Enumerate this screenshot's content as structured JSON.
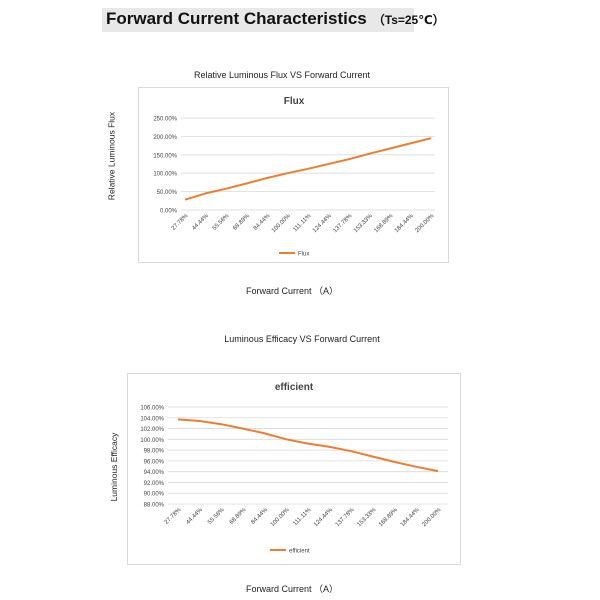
{
  "header": {
    "title": "Forward Current Characteristics",
    "condition": "（Ts=25℃）"
  },
  "colors": {
    "series": "#ED7D31",
    "grid": "#d9d9d9",
    "header_bg": "#e8e8e8"
  },
  "chart_data": [
    {
      "type": "line",
      "caption": "Relative Luminous Flux VS Forward Current",
      "title": "Flux",
      "ylabel": "Relative Luminous Flux",
      "xlabel": "Forward Current （A）",
      "categories": [
        "27.78%",
        "44.44%",
        "55.56%",
        "68.89%",
        "84.44%",
        "100.00%",
        "111.11%",
        "124.44%",
        "137.78%",
        "153.33%",
        "168.89%",
        "184.44%",
        "200.00%"
      ],
      "yticks": [
        "0.00%",
        "50.00%",
        "100.00%",
        "150.00%",
        "200.00%",
        "250.00%"
      ],
      "ylim": [
        0,
        250
      ],
      "series": [
        {
          "name": "Flux",
          "values": [
            28,
            45,
            58,
            72,
            87,
            100,
            112,
            125,
            138,
            153,
            167,
            181,
            195
          ]
        }
      ],
      "legend": "bottom",
      "grid": true
    },
    {
      "type": "line",
      "caption": "Luminous Efficacy VS Forward Current",
      "title": "efficient",
      "ylabel": "Luminous Efficacy",
      "xlabel": "Forward Current （A）",
      "categories": [
        "27.78%",
        "44.44%",
        "55.56%",
        "68.89%",
        "84.44%",
        "100.00%",
        "111.11%",
        "124.44%",
        "137.78%",
        "153.33%",
        "168.89%",
        "184.44%",
        "200.00%"
      ],
      "yticks": [
        "88.00%",
        "90.00%",
        "92.00%",
        "94.00%",
        "96.00%",
        "98.00%",
        "100.00%",
        "102.00%",
        "104.00%",
        "106.00%"
      ],
      "ylim": [
        88,
        106
      ],
      "series": [
        {
          "name": "efficient",
          "values": [
            103.7,
            103.4,
            102.8,
            102.0,
            101.1,
            100.0,
            99.2,
            98.6,
            97.8,
            96.8,
            95.8,
            94.9,
            94.1
          ]
        }
      ],
      "legend": "bottom",
      "grid": true
    }
  ]
}
